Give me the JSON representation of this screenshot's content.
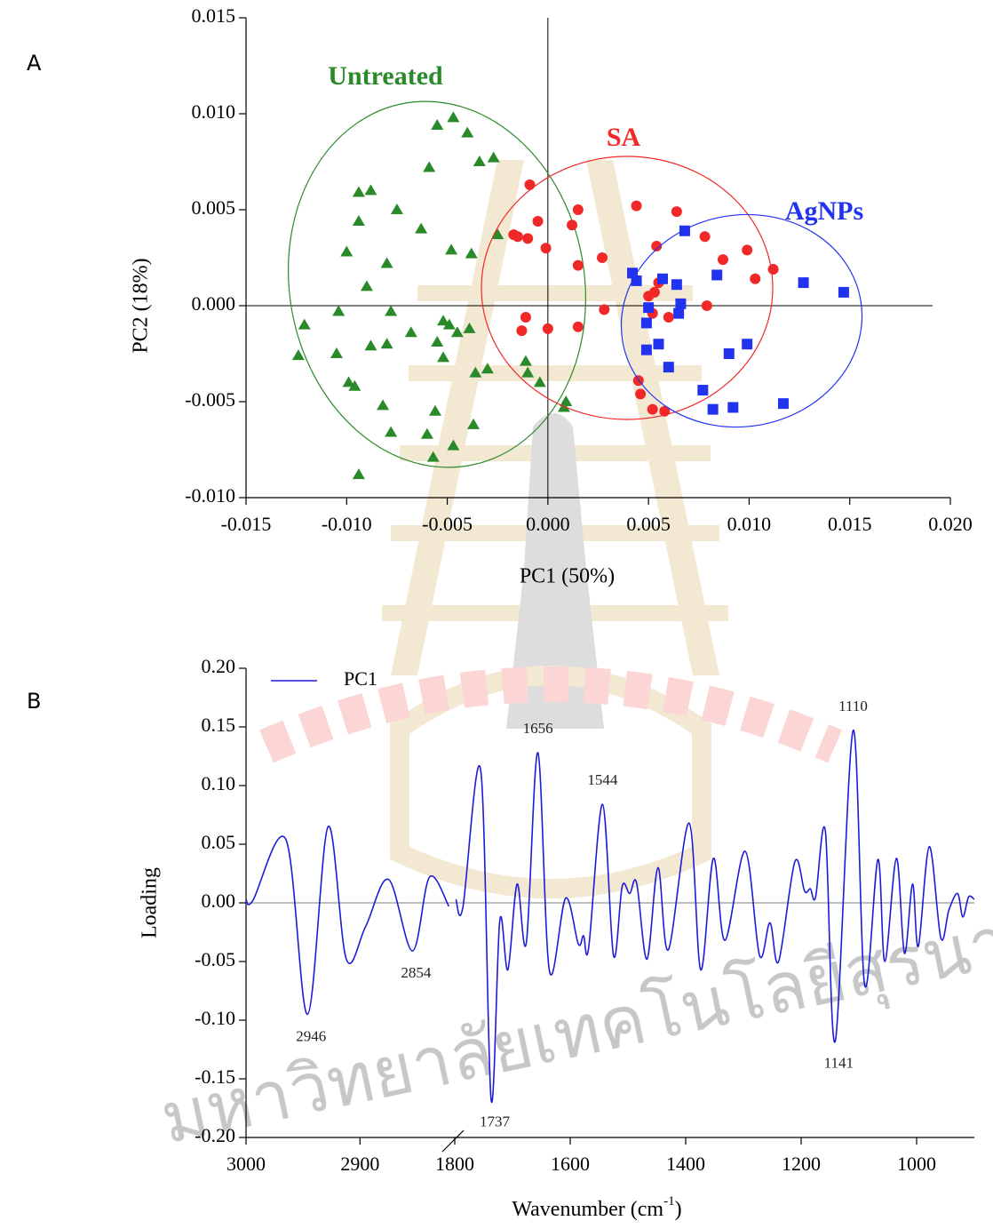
{
  "panel_labels": [
    "A",
    "B"
  ],
  "watermark_text": "มหาวิทยาลัยเทคโนโลยีสุรนารี",
  "chart_data": [
    {
      "type": "scatter",
      "x_label": "PC1 (50%)",
      "y_label": "PC2 (18%)",
      "xlim": [
        -0.015,
        0.02
      ],
      "ylim": [
        -0.01,
        0.015
      ],
      "xticks": [
        -0.015,
        {
          "value": -0.01,
          "label": "-0.010"
        },
        -0.005,
        {
          "value": 0,
          "label": "0.000"
        },
        0.005,
        {
          "value": 0.01,
          "label": "0.010"
        },
        0.015,
        {
          "value": 0.02,
          "label": "0.020"
        }
      ],
      "yticks": [
        {
          "value": -0.01,
          "label": "-0.010"
        },
        -0.005,
        {
          "value": 0,
          "label": "0.000"
        },
        0.005,
        {
          "value": 0.01,
          "label": "0.010"
        },
        0.015
      ],
      "zero_lines": true,
      "series": [
        {
          "name": "Untreated",
          "color": "#2a8a2a",
          "marker": "triangle",
          "x": [
            -0.0047,
            -0.0055,
            -0.004,
            -0.0027,
            -0.0034,
            -0.0059,
            -0.0094,
            -0.0088,
            -0.0075,
            -0.0094,
            -0.0063,
            -0.01,
            -0.0025,
            -0.0048,
            -0.0038,
            -0.008,
            -0.009,
            -0.0078,
            -0.0104,
            -0.0121,
            -0.0052,
            -0.0049,
            -0.0039,
            -0.0068,
            -0.0045,
            -0.0055,
            -0.008,
            -0.0088,
            -0.0105,
            -0.0124,
            -0.0052,
            -0.003,
            -0.0036,
            -0.0011,
            -0.001,
            -0.0004,
            -0.0099,
            -0.0096,
            0.0009,
            -0.0082,
            0.0008,
            -0.0056,
            -0.0078,
            -0.006,
            -0.0037,
            -0.0047,
            -0.0057,
            -0.0094
          ],
          "values": [
            0.0098,
            0.0094,
            0.009,
            0.0077,
            0.0075,
            0.0072,
            0.0059,
            0.006,
            0.005,
            0.0044,
            0.004,
            0.0028,
            0.0037,
            0.0029,
            0.0027,
            0.0022,
            0.001,
            -0.0003,
            -0.0003,
            -0.001,
            -0.0008,
            -0.001,
            -0.0012,
            -0.0014,
            -0.0014,
            -0.0019,
            -0.002,
            -0.0021,
            -0.0025,
            -0.0026,
            -0.0027,
            -0.0033,
            -0.0035,
            -0.0029,
            -0.0035,
            -0.004,
            -0.004,
            -0.0042,
            -0.005,
            -0.0052,
            -0.0053,
            -0.0055,
            -0.0066,
            -0.0067,
            -0.0062,
            -0.0073,
            -0.0079,
            -0.0088
          ]
        },
        {
          "name": "SA",
          "color": "#f02828",
          "marker": "circle",
          "x": [
            -0.0009,
            -0.0005,
            -0.001,
            -0.0001,
            -0.0017,
            -0.0015,
            0.0012,
            0.0015,
            0.0015,
            0.0044,
            0.0064,
            0.0054,
            0.0078,
            0.0055,
            0.0027,
            0.0087,
            0.0099,
            0.0112,
            0.0103,
            0.0053,
            0.005,
            0.0079,
            0.0052,
            0.0028,
            0.006,
            -0.0011,
            -0.0013,
            0.0,
            0.0015,
            0.0045,
            0.0046,
            0.0052,
            0.0058
          ],
          "values": [
            0.0063,
            0.0044,
            0.0035,
            0.003,
            0.0037,
            0.0036,
            0.0042,
            0.005,
            0.0021,
            0.0052,
            0.0049,
            0.0031,
            0.0036,
            0.0012,
            0.0025,
            0.0024,
            0.0029,
            0.0019,
            0.0014,
            0.0007,
            0.0005,
            0.0,
            -0.0004,
            -0.0002,
            -0.0006,
            -0.0006,
            -0.0013,
            -0.0012,
            -0.0011,
            -0.0039,
            -0.0046,
            -0.0054,
            -0.0055
          ]
        },
        {
          "name": "AgNPs",
          "color": "#2233f0",
          "marker": "square",
          "x": [
            0.0068,
            0.0042,
            0.0044,
            0.0057,
            0.0064,
            0.0084,
            0.0127,
            0.0147,
            0.005,
            0.0066,
            0.0065,
            0.0049,
            0.0055,
            0.0049,
            0.006,
            0.0099,
            0.009,
            0.0077,
            0.0082,
            0.0092,
            0.0117
          ],
          "values": [
            0.0039,
            0.0017,
            0.0013,
            0.0014,
            0.0011,
            0.0016,
            0.0012,
            0.0007,
            -0.0001,
            0.0001,
            -0.0004,
            -0.0009,
            -0.002,
            -0.0023,
            -0.0032,
            -0.002,
            -0.0025,
            -0.0044,
            -0.0054,
            -0.0053,
            -0.0051
          ]
        }
      ]
    },
    {
      "type": "line",
      "x_label": {
        "text": "Wavenumber (cm",
        "superscript": "-1",
        "suffix": ")"
      },
      "y_label": "Loading",
      "xlim_segments": [
        [
          3000,
          2820
        ],
        [
          1800,
          900
        ]
      ],
      "ylim": [
        -0.2,
        0.2
      ],
      "xticks": [
        3000,
        2900,
        1800,
        1600,
        1400,
        1200,
        1000
      ],
      "yticks": [
        {
          "value": -0.2,
          "label": "-0.20"
        },
        -0.15,
        {
          "value": -0.1,
          "label": "-0.10"
        },
        -0.05,
        {
          "value": 0,
          "label": "0.00"
        },
        0.05,
        {
          "value": 0.1,
          "label": "0.10"
        },
        0.15,
        {
          "value": 0.2,
          "label": "0.20"
        }
      ],
      "zero_line": true,
      "legend": "upper left",
      "series": [
        {
          "name": "PC1",
          "color": "#1c1cd8",
          "x": [
            3000,
            2994,
            2965,
            2946,
            2928,
            2912,
            2895,
            2875,
            2854,
            2839,
            2822,
            null,
            1798,
            1786,
            1755,
            1737,
            1722,
            1708,
            1692,
            1676,
            1656,
            1636,
            1608,
            1586,
            1577,
            1568,
            1544,
            1525,
            1510,
            1497,
            1485,
            1467,
            1448,
            1430,
            1394,
            1374,
            1352,
            1332,
            1297,
            1272,
            1254,
            1239,
            1211,
            1194,
            1184,
            1175,
            1158,
            1141,
            1110,
            1090,
            1067,
            1055,
            1035,
            1021,
            1007,
            997,
            978,
            958,
            944,
            929,
            920,
            910,
            900
          ],
          "values": [
            0.003,
            0.002,
            0.054,
            -0.095,
            0.065,
            -0.048,
            -0.02,
            0.02,
            -0.041,
            0.022,
            -0.003,
            null,
            0.003,
            -0.004,
            0.113,
            -0.168,
            -0.015,
            -0.057,
            0.016,
            -0.034,
            0.128,
            -0.058,
            0.004,
            -0.035,
            -0.028,
            -0.038,
            0.084,
            -0.045,
            0.014,
            0.008,
            0.017,
            -0.048,
            0.03,
            -0.04,
            0.068,
            -0.057,
            0.038,
            -0.032,
            0.044,
            -0.045,
            -0.017,
            -0.05,
            0.035,
            0.01,
            0.012,
            0.005,
            0.061,
            -0.118,
            0.147,
            -0.07,
            0.037,
            -0.05,
            0.038,
            -0.043,
            0.016,
            -0.037,
            0.048,
            -0.03,
            -0.006,
            0.008,
            -0.012,
            0.005,
            0.003
          ]
        }
      ],
      "annotations": [
        {
          "text": "2946",
          "x": 2946
        },
        {
          "text": "2854",
          "x": 2854
        },
        {
          "text": "1737",
          "x": 1737
        },
        {
          "text": "1656",
          "x": 1656
        },
        {
          "text": "1544",
          "x": 1544
        },
        {
          "text": "1141",
          "x": 1141
        },
        {
          "text": "1110",
          "x": 1110
        }
      ]
    }
  ]
}
